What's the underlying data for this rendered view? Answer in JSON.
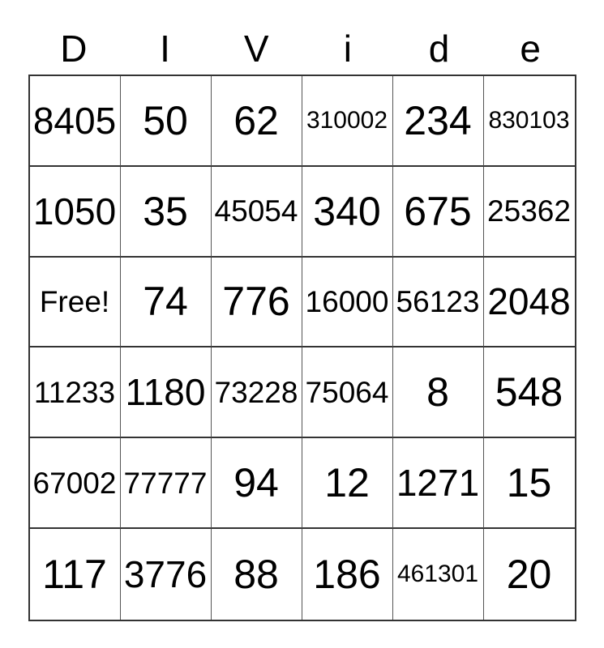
{
  "title": {
    "word": "DIVide",
    "letters": [
      "D",
      "I",
      "V",
      "i",
      "d",
      "e"
    ]
  },
  "grid": {
    "rows": [
      [
        "8405",
        "50",
        "62",
        "310002",
        "234",
        "830103"
      ],
      [
        "1050",
        "35",
        "45054",
        "340",
        "675",
        "25362"
      ],
      [
        "Free!",
        "74",
        "776",
        "16000",
        "56123",
        "2048"
      ],
      [
        "11233",
        "1180",
        "73228",
        "75064",
        "8",
        "548"
      ],
      [
        "67002",
        "77777",
        "94",
        "12",
        "1271",
        "15"
      ],
      [
        "117",
        "3776",
        "88",
        "186",
        "461301",
        "20"
      ]
    ],
    "free_cell_label": "Free!"
  },
  "colors": {
    "background": "#ffffff",
    "text": "#000000",
    "border_outer": "#333333",
    "border_inner": "#545454"
  }
}
